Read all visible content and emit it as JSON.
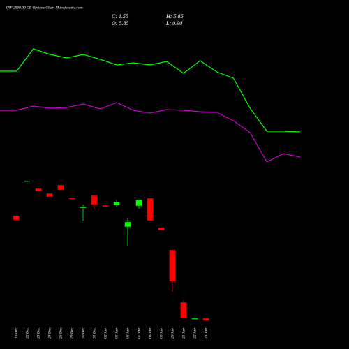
{
  "header": {
    "title": "SRF 2900.00 CE Options Chart Munafasutra.com",
    "close": "C: 1.55",
    "high": "H: 5.85",
    "open": "O: 5.85",
    "low": "L: 0.90"
  },
  "chart_data": [
    {
      "type": "line",
      "x": [
        0,
        1,
        2,
        3,
        4,
        5,
        6,
        7,
        8,
        9,
        10,
        11,
        12,
        13,
        14,
        15,
        16,
        17,
        18
      ],
      "xlim": [
        0,
        18
      ],
      "ylim": [
        0,
        100
      ],
      "series": [
        {
          "color": "#00ff00",
          "values": [
            74,
            74,
            90,
            86,
            83.5,
            86,
            82.5,
            78.5,
            80,
            78.5,
            81,
            72.5,
            81.5,
            73.5,
            69,
            47.5,
            31,
            31,
            30.5
          ]
        },
        {
          "color": "#cc00cc",
          "values": [
            46,
            46,
            49,
            47.5,
            48,
            50.5,
            47,
            51.5,
            46,
            44,
            46.5,
            46,
            45,
            44.5,
            38.5,
            30,
            9,
            15,
            12.5
          ]
        }
      ]
    },
    {
      "type": "candlestick",
      "ylim": [
        0,
        22
      ],
      "up_color": "#00ff00",
      "down_color": "#ff0000",
      "categories": [
        "16 Dec",
        "22 Dec",
        "23 Dec",
        "24 Dec",
        "26 Dec",
        "29 Dec",
        "30 Dec",
        "31 Dec",
        "02 Jan",
        "05 Jan",
        "06 Jan",
        "07 Jan",
        "08 Jan",
        "09 Jan",
        "20 Jan",
        "21 Jan",
        "22 Jan",
        "23 Jan"
      ],
      "open": [
        16.1,
        21.1,
        20.0,
        19.3,
        20.5,
        18.7,
        17.2,
        19.0,
        17.6,
        17.6,
        14.5,
        17.5,
        18.6,
        14.4,
        11.2,
        3.7,
        1.3,
        1.4
      ],
      "high": [
        16.1,
        21.1,
        20.0,
        19.3,
        20.5,
        18.7,
        17.7,
        19.0,
        17.6,
        18.4,
        15.7,
        18.4,
        18.6,
        14.4,
        11.2,
        4.0,
        1.5,
        1.4
      ],
      "low": [
        15.5,
        21.0,
        19.6,
        18.8,
        19.8,
        18.5,
        15.4,
        17.1,
        17.4,
        17.4,
        11.8,
        17.1,
        15.4,
        14.0,
        5.2,
        1.4,
        1.3,
        1.1
      ],
      "close": [
        15.5,
        21.1,
        19.6,
        18.8,
        19.8,
        18.5,
        17.4,
        17.7,
        17.4,
        18.1,
        15.2,
        18.4,
        15.4,
        14.0,
        6.7,
        1.4,
        1.4,
        1.1
      ]
    }
  ]
}
